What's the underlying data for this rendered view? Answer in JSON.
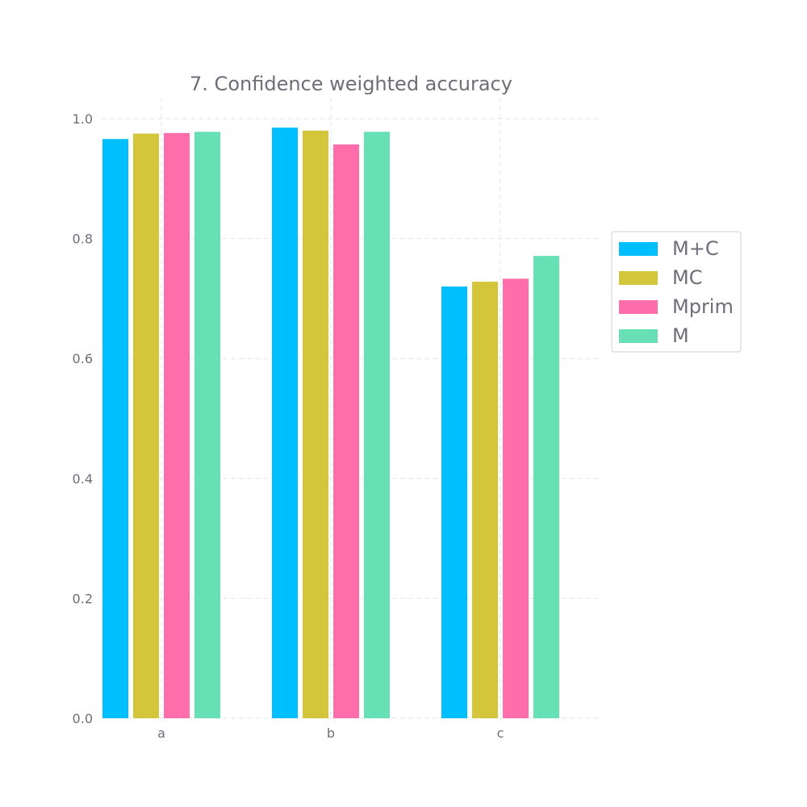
{
  "chart_data": {
    "type": "bar",
    "title": "7. Confidence weighted accuracy",
    "xlabel": "",
    "ylabel": "",
    "categories": [
      "a",
      "b",
      "c"
    ],
    "ylim": [
      0,
      1.0
    ],
    "yticks": [
      "0.0",
      "0.2",
      "0.4",
      "0.6",
      "0.8",
      "1.0"
    ],
    "grid": true,
    "legend_position": "right",
    "series": [
      {
        "name": "M+C",
        "color": "#00bfff",
        "values": [
          0.966,
          0.985,
          0.72
        ]
      },
      {
        "name": "MC",
        "color": "#d4c63a",
        "values": [
          0.975,
          0.98,
          0.728
        ]
      },
      {
        "name": "Mprim",
        "color": "#ff6eaa",
        "values": [
          0.976,
          0.957,
          0.733
        ]
      },
      {
        "name": "M",
        "color": "#66e0b4",
        "values": [
          0.978,
          0.978,
          0.771
        ]
      }
    ]
  }
}
